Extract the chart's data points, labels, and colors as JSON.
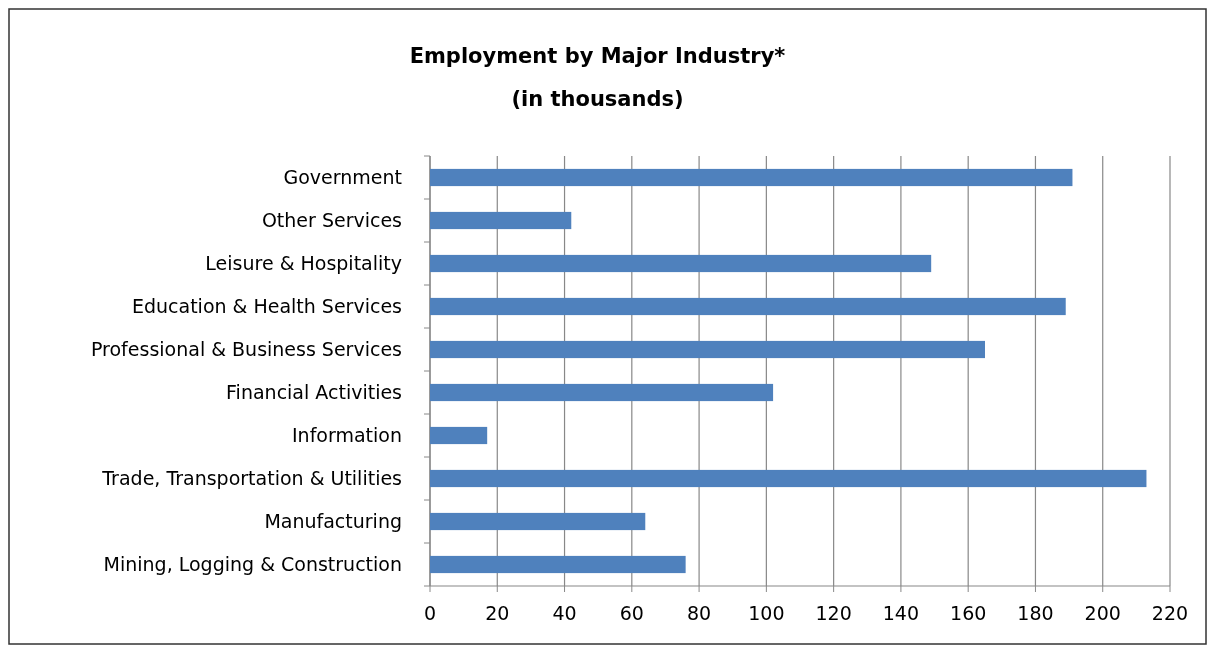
{
  "chart_data": {
    "type": "bar",
    "orientation": "horizontal",
    "title": "Employment by Major Industry*",
    "subtitle": "(in thousands)",
    "categories": [
      "Government",
      "Other Services",
      "Leisure & Hospitality",
      "Education & Health Services",
      "Professional & Business Services",
      "Financial Activities",
      "Information",
      "Trade, Transportation & Utilities",
      "Manufacturing",
      "Mining, Logging & Construction"
    ],
    "values": [
      191,
      42,
      149,
      189,
      165,
      102,
      17,
      213,
      64,
      76
    ],
    "color": "#4f81bd",
    "xlim": [
      0,
      220
    ],
    "xticks": [
      0,
      20,
      40,
      60,
      80,
      100,
      120,
      140,
      160,
      180,
      200,
      220
    ],
    "grid": "x"
  }
}
